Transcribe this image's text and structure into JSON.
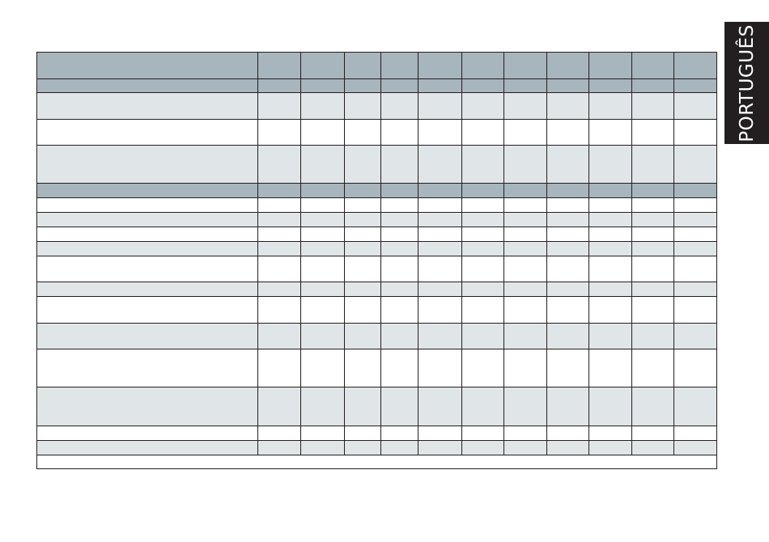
{
  "side_tab": {
    "label": "PORTUGUÊS"
  },
  "colors": {
    "header_row": "#a7b5bc",
    "shaded_row": "#e0e5e8",
    "plain_row": "#ffffff",
    "tab_background": "#231f20",
    "grid_lines": "#231f20"
  }
}
